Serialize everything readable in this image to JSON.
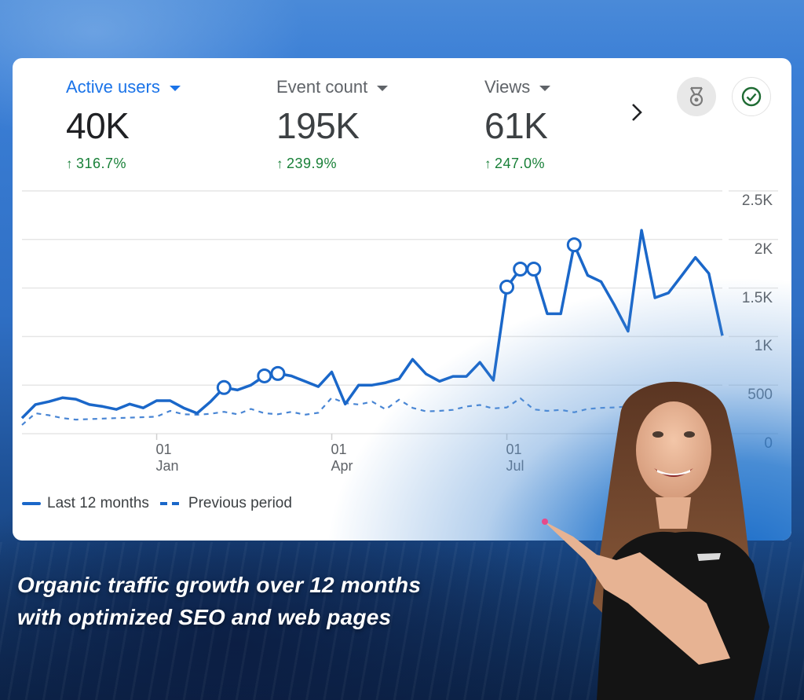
{
  "metrics": [
    {
      "label": "Active users",
      "value": "40K",
      "change": "316.7%",
      "active": true
    },
    {
      "label": "Event count",
      "value": "195K",
      "change": "239.9%",
      "active": false
    },
    {
      "label": "Views",
      "value": "61K",
      "change": "247.0%",
      "active": false
    }
  ],
  "icons": {
    "next": "chevron-right-icon",
    "insights": "medal-icon",
    "status": "check-circle-icon",
    "change_arrow": "arrow-up-icon"
  },
  "nav": {
    "next_glyph": "›"
  },
  "change_arrow_glyph": "↑",
  "legend": {
    "current": "Last 12 months",
    "previous": "Previous period"
  },
  "caption": {
    "line1": "Organic traffic growth over 12 months",
    "line2": "with optimized SEO and web pages"
  },
  "colors": {
    "accent": "#1a73e8",
    "line": "#1a67c9",
    "positive": "#188038",
    "grid": "#e6e6e6"
  },
  "chart_data": {
    "type": "line",
    "title": "Active users",
    "xlabel": "",
    "ylabel": "",
    "ylim": [
      0,
      2500
    ],
    "yticks": [
      "0",
      "500",
      "1K",
      "1.5K",
      "2K",
      "2.5K"
    ],
    "ytick_values": [
      0,
      500,
      1000,
      1500,
      2000,
      2500
    ],
    "xticks": [
      {
        "day": "01",
        "month": "Jan",
        "index": 10
      },
      {
        "day": "01",
        "month": "Apr",
        "index": 23
      },
      {
        "day": "01",
        "month": "Jul",
        "index": 36
      }
    ],
    "grid": true,
    "legend_position": "bottom-left",
    "anomaly_indices": [
      15,
      18,
      19,
      36,
      37,
      38,
      41
    ],
    "series": [
      {
        "name": "Last 12 months",
        "style": "solid",
        "values": [
          160,
          300,
          330,
          370,
          355,
          300,
          280,
          250,
          305,
          265,
          340,
          340,
          265,
          210,
          330,
          475,
          450,
          500,
          595,
          620,
          595,
          540,
          485,
          635,
          305,
          500,
          500,
          525,
          565,
          765,
          615,
          540,
          590,
          590,
          735,
          550,
          1510,
          1695,
          1695,
          1235,
          1235,
          1945,
          1630,
          1565,
          1320,
          1055,
          2095,
          1400,
          1450,
          1630,
          1815,
          1650,
          1010
        ]
      },
      {
        "name": "Previous period",
        "style": "dashed",
        "values": [
          90,
          210,
          190,
          160,
          145,
          150,
          155,
          160,
          165,
          170,
          175,
          235,
          200,
          195,
          205,
          225,
          200,
          255,
          210,
          200,
          225,
          195,
          215,
          370,
          315,
          300,
          330,
          250,
          350,
          265,
          230,
          235,
          245,
          280,
          295,
          260,
          270,
          365,
          250,
          235,
          245,
          220,
          255,
          265,
          270,
          280,
          295,
          300,
          310,
          300,
          305,
          290,
          250
        ]
      }
    ]
  }
}
